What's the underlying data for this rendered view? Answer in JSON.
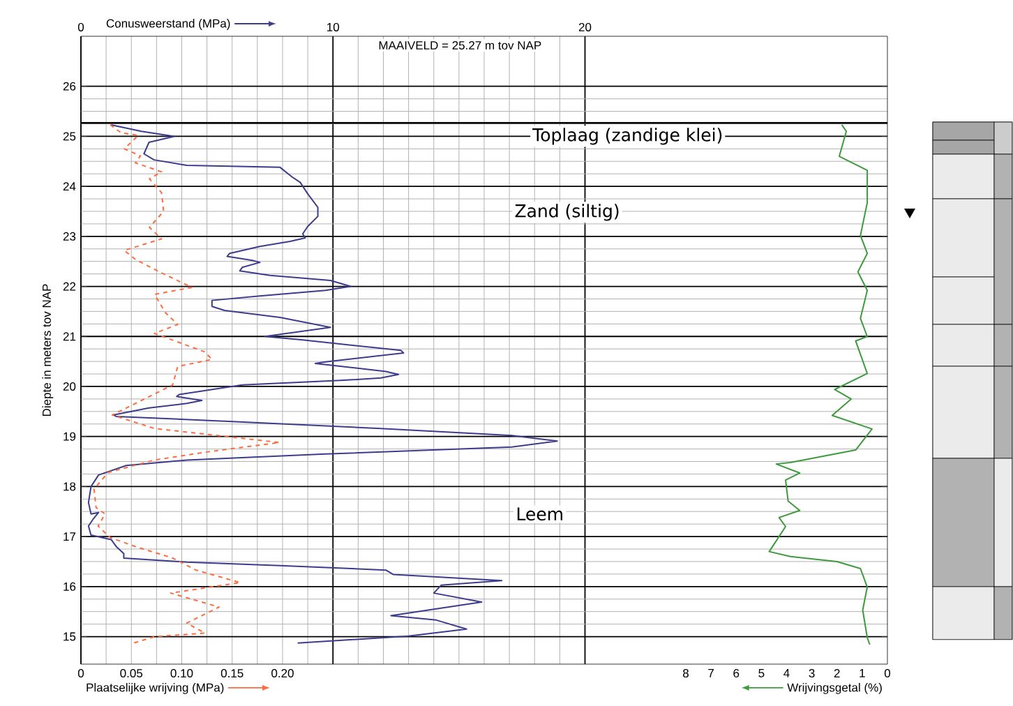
{
  "chart_data": [
    {
      "type": "line",
      "xlabel": "Conusweerstand (MPa)",
      "x2label": "Plaatselijke wrijving (MPa)",
      "ylabel": "Diepte in meters tov NAP",
      "xlim": [
        0,
        32
      ],
      "xticks": [
        0,
        10,
        20
      ],
      "x2lim": [
        0,
        0.8
      ],
      "x2ticks": [
        0,
        0.05,
        {
          "value": 0.1,
          "label": "0.10"
        },
        0.15,
        {
          "value": 0.2,
          "label": "0.20"
        }
      ],
      "ylim": [
        14.45,
        27
      ],
      "yticks": [
        15,
        16,
        17,
        18,
        19,
        20,
        21,
        22,
        23,
        24,
        25,
        26
      ],
      "grid": true,
      "marker": "none",
      "ref_lines": [
        {
          "axis": "y",
          "value": 25.27,
          "color": "#000000"
        }
      ],
      "annotations": [
        "MAAIVELD =  25.27  m tov NAP",
        "Toplaag (zandige klei)",
        "Zand (siltig)",
        "Leem"
      ],
      "series": [
        {
          "color": "#3c3c8c",
          "line_style": "solid",
          "x": [
            1.2,
            2.4,
            3.7,
            2.7,
            2.5,
            2.9,
            4.2,
            7.9,
            8.4,
            8.7,
            9.0,
            9.4,
            9.4,
            9.0,
            8.8,
            8.9,
            8.3,
            7.1,
            5.9,
            5.8,
            6.8,
            7.1,
            6.4,
            6.3,
            7.5,
            9.9,
            10.7,
            9.7,
            7.1,
            5.2,
            5.2,
            5.7,
            7.9,
            9.9,
            7.3,
            8.8,
            12.7,
            12.8,
            9.7,
            9.3,
            12.1,
            12.6,
            11.9,
            10.3,
            6.4,
            3.9,
            3.8,
            4.8,
            4.2,
            2.7,
            1.3,
            1.4,
            6.0,
            11.9,
            17.1,
            18.9,
            17.1,
            9.7,
            4.2,
            1.8,
            0.7,
            0.4,
            0.3,
            0.4,
            0.7,
            0.5,
            0.3,
            0.4,
            1.2,
            1.4,
            1.7,
            1.7,
            4.2,
            7.9,
            12.1,
            12.4,
            16.7,
            14.3,
            14.0,
            15.9,
            12.3,
            14.1,
            15.3,
            13.0,
            8.6
          ],
          "values": [
            25.23,
            25.1,
            25.0,
            24.88,
            24.65,
            24.53,
            24.42,
            24.38,
            24.18,
            24.08,
            23.85,
            23.58,
            23.4,
            23.2,
            23.05,
            22.97,
            22.9,
            22.8,
            22.66,
            22.6,
            22.52,
            22.48,
            22.38,
            22.31,
            22.22,
            22.12,
            22.0,
            21.92,
            21.81,
            21.72,
            21.6,
            21.52,
            21.38,
            21.18,
            21.0,
            20.93,
            20.72,
            20.67,
            20.49,
            20.46,
            20.3,
            20.24,
            20.17,
            20.12,
            20.03,
            19.84,
            19.8,
            19.72,
            19.66,
            19.57,
            19.43,
            19.4,
            19.3,
            19.16,
            19.02,
            18.91,
            18.79,
            18.65,
            18.53,
            18.42,
            18.23,
            18.0,
            17.68,
            17.45,
            17.48,
            17.36,
            17.21,
            17.03,
            16.94,
            16.8,
            16.66,
            16.57,
            16.49,
            16.42,
            16.33,
            16.24,
            16.12,
            16.03,
            15.87,
            15.69,
            15.42,
            15.33,
            15.15,
            15.01,
            14.87
          ]
        },
        {
          "axis": "x2",
          "color": "#ff6b3d",
          "line_style": "dashed",
          "x": [
            0.029,
            0.04,
            0.057,
            0.043,
            0.059,
            0.054,
            0.08,
            0.068,
            0.08,
            0.082,
            0.068,
            0.08,
            0.043,
            0.054,
            0.077,
            0.11,
            0.073,
            0.084,
            0.096,
            0.073,
            0.123,
            0.13,
            0.096,
            0.091,
            0.059,
            0.031,
            0.073,
            0.197,
            0.128,
            0.073,
            0.027,
            0.013,
            0.015,
            0.024,
            0.017,
            0.029,
            0.054,
            0.091,
            0.114,
            0.158,
            0.089,
            0.137,
            0.105,
            0.123,
            0.073,
            0.052
          ],
          "values": [
            25.23,
            25.07,
            25.02,
            24.75,
            24.61,
            24.47,
            24.29,
            24.15,
            23.87,
            23.5,
            23.18,
            22.95,
            22.72,
            22.54,
            22.3,
            21.98,
            21.84,
            21.47,
            21.24,
            21.06,
            20.69,
            20.54,
            20.4,
            20.03,
            19.71,
            19.43,
            19.16,
            18.88,
            18.7,
            18.53,
            18.28,
            17.95,
            17.58,
            17.45,
            17.21,
            16.98,
            16.8,
            16.57,
            16.33,
            16.08,
            15.87,
            15.59,
            15.27,
            15.07,
            15.0,
            14.87
          ]
        }
      ]
    },
    {
      "type": "line",
      "xlabel": "Wrijvingsgetal (%)",
      "xlim": [
        32,
        0
      ],
      "xticks": [
        8,
        7,
        6,
        5,
        4,
        3,
        2,
        1,
        0
      ],
      "ylim": [
        14.45,
        27
      ],
      "tick_labels": "x",
      "marker": "none",
      "series": [
        {
          "color": "#3d9a3d",
          "line_style": "solid",
          "x": [
            1.81,
            1.63,
            1.91,
            0.8,
            0.8,
            1.07,
            0.8,
            1.17,
            0.8,
            1.07,
            0.8,
            1.26,
            0.8,
            2.09,
            1.44,
            2.19,
            0.61,
            1.26,
            3.85,
            4.41,
            3.48,
            4.04,
            3.94,
            3.48,
            4.3,
            4.04,
            4.69,
            3.85,
            2.0,
            1.07,
            0.8,
            0.98,
            0.8,
            0.7
          ],
          "values": [
            25.23,
            25.1,
            24.6,
            24.32,
            23.67,
            23.02,
            22.66,
            22.29,
            21.92,
            21.36,
            21.0,
            20.91,
            20.26,
            19.94,
            19.75,
            19.42,
            19.15,
            18.73,
            18.48,
            18.45,
            18.27,
            18.13,
            17.71,
            17.52,
            17.38,
            17.2,
            16.7,
            16.6,
            16.5,
            16.36,
            15.99,
            15.53,
            14.98,
            14.84
          ]
        }
      ]
    }
  ]
}
